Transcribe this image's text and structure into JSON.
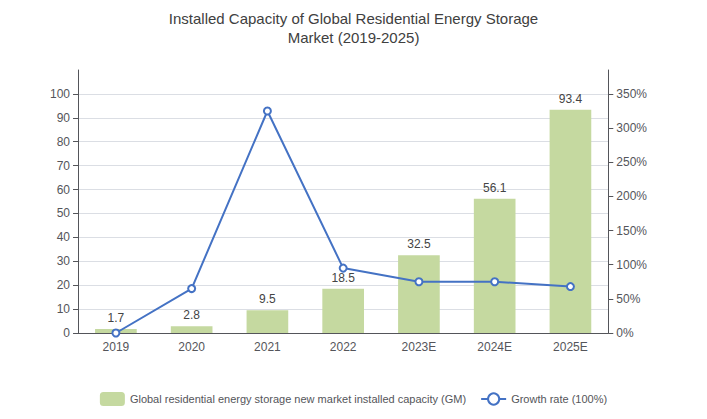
{
  "chart_data": {
    "type": "bar",
    "title": "Installed Capacity of Global Residential Energy Storage",
    "subtitle": "Market (2019-2025)",
    "categories": [
      "2019",
      "2020",
      "2021",
      "2022",
      "2023E",
      "2024E",
      "2025E"
    ],
    "series": [
      {
        "name": "Global residential energy storage new market installed capacity (GM)",
        "type": "bar",
        "color": "#c5d9a0",
        "values": [
          1.7,
          2.8,
          9.5,
          18.5,
          32.5,
          56.1,
          93.4
        ],
        "data_labels": true
      },
      {
        "name": "Growth rate (100%)",
        "type": "line",
        "color": "#4472c4",
        "axis": "y2",
        "marker": "circle",
        "values": [
          0,
          65,
          325,
          95,
          75,
          75,
          68
        ]
      }
    ],
    "ylim": [
      0,
      110
    ],
    "yticks": [
      0,
      10,
      20,
      30,
      40,
      50,
      60,
      70,
      80,
      90,
      100
    ],
    "y2lim": [
      0,
      385
    ],
    "y2ticks": [
      {
        "value": 0,
        "label": "0%"
      },
      {
        "value": 50,
        "label": "50%"
      },
      {
        "value": 100,
        "label": "100%"
      },
      {
        "value": 150,
        "label": "150%"
      },
      {
        "value": 200,
        "label": "200%"
      },
      {
        "value": 250,
        "label": "250%"
      },
      {
        "value": 300,
        "label": "300%"
      },
      {
        "value": 350,
        "label": "350%"
      }
    ],
    "grid": true,
    "legend": "bottom"
  }
}
